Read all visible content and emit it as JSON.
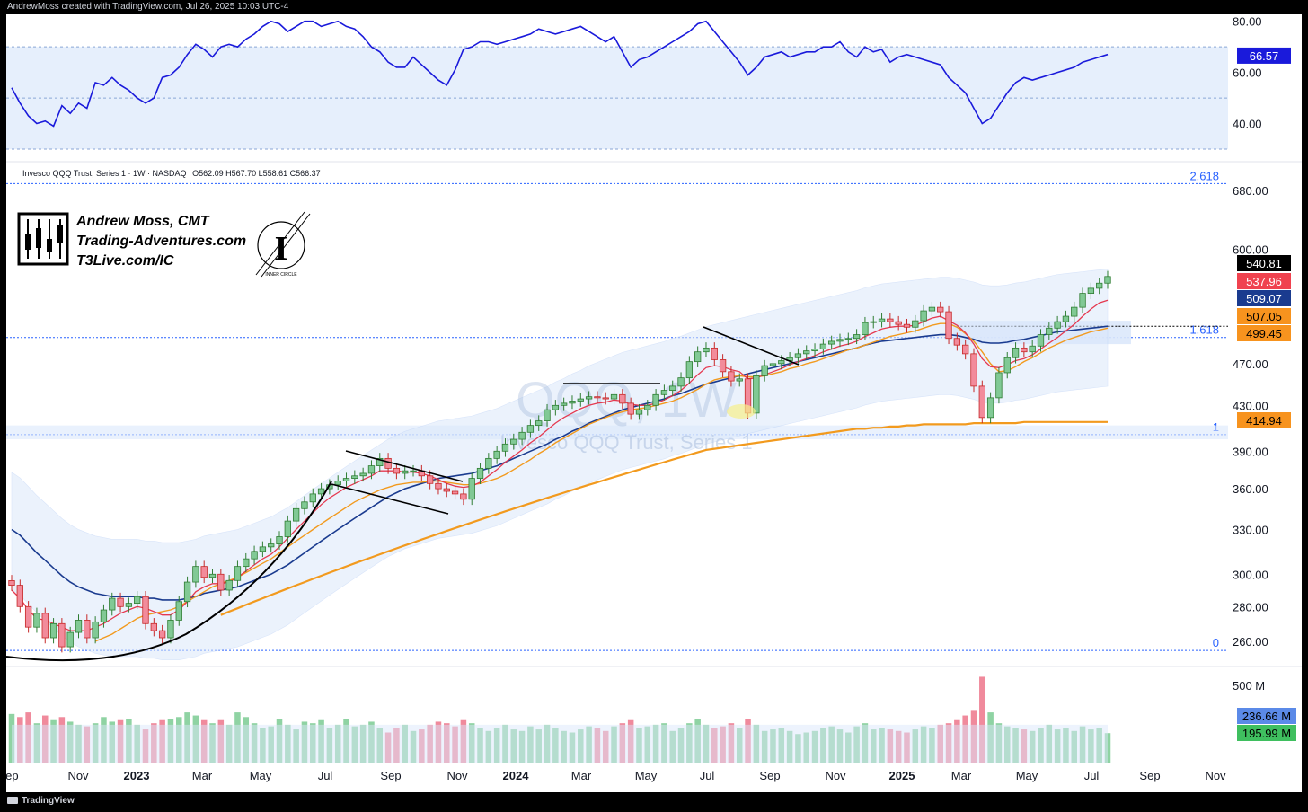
{
  "header": {
    "caption": "AndrewMoss created with TradingView.com, Jul 26, 2025 10:03 UTC-4"
  },
  "footer": {
    "brand": "TradingView"
  },
  "colors": {
    "up": "#81c995",
    "up_border": "#2e7d32",
    "down": "#f28b9b",
    "down_border": "#c62828",
    "rsi": "#1a1adb",
    "ema_red": "#e53950",
    "ma_blue": "#1a3b8f",
    "ma_orange": "#f29a1e",
    "fib": "#2962ff",
    "band_fill": "#dbe8fb"
  },
  "watermark": {
    "ticker": "QQQ, 1W",
    "name": "Invesco QQQ Trust, Series 1"
  },
  "logo": {
    "line1": "Andrew Moss, CMT",
    "line2": "Trading-Adventures.com",
    "line3": "T3Live.com/IC",
    "inner": "INNER CIRCLE"
  },
  "chart_data": {
    "type": "candlestick",
    "symbol": "Invesco QQQ Trust, Series 1 · 1W · NASDAQ",
    "ohlc_label": "O562.09 H567.70 L558.61 C566.37",
    "last_bar": {
      "open": 562.09,
      "high": 567.7,
      "low": 558.61,
      "close": 566.37
    },
    "price_scale": "log",
    "price_ticks": [
      "680.00",
      "600.00",
      "470.00",
      "430.00",
      "390.00",
      "360.00",
      "330.00",
      "300.00",
      "280.00",
      "260.00"
    ],
    "price_tick_values": [
      680,
      600,
      470,
      430,
      390,
      360,
      330,
      300,
      280,
      260
    ],
    "price_badges": [
      {
        "label": "540.81",
        "color": "#000000"
      },
      {
        "label": "537.96",
        "color": "#f0424f"
      },
      {
        "label": "509.07",
        "color": "#1a3b8f"
      },
      {
        "label": "507.05",
        "color": "#f7931e"
      },
      {
        "label": "499.45",
        "color": "#f7931e"
      },
      {
        "label": "414.94",
        "color": "#f7931e"
      }
    ],
    "fib_levels": [
      {
        "label": "2.618",
        "value": 690
      },
      {
        "label": "1.618",
        "value": 497
      },
      {
        "label": "1",
        "value": 404
      },
      {
        "label": "0",
        "value": 255
      }
    ],
    "x_labels": [
      {
        "label": "Sep",
        "bold": false
      },
      {
        "label": "Nov",
        "bold": false
      },
      {
        "label": "2023",
        "bold": true
      },
      {
        "label": "Mar",
        "bold": false
      },
      {
        "label": "May",
        "bold": false
      },
      {
        "label": "Jul",
        "bold": false
      },
      {
        "label": "Sep",
        "bold": false
      },
      {
        "label": "Nov",
        "bold": false
      },
      {
        "label": "2024",
        "bold": true
      },
      {
        "label": "Mar",
        "bold": false
      },
      {
        "label": "May",
        "bold": false
      },
      {
        "label": "Jul",
        "bold": false
      },
      {
        "label": "Sep",
        "bold": false
      },
      {
        "label": "Nov",
        "bold": false
      },
      {
        "label": "2025",
        "bold": true
      },
      {
        "label": "Mar",
        "bold": false
      },
      {
        "label": "May",
        "bold": false
      },
      {
        "label": "Jul",
        "bold": false
      },
      {
        "label": "Sep",
        "bold": false
      },
      {
        "label": "Nov",
        "bold": false
      }
    ],
    "closes": [
      293,
      280,
      268,
      276,
      262,
      270,
      257,
      265,
      272,
      262,
      271,
      278,
      285,
      280,
      282,
      286,
      270,
      266,
      262,
      272,
      283,
      295,
      305,
      298,
      300,
      290,
      296,
      305,
      310,
      315,
      318,
      320,
      325,
      336,
      345,
      350,
      356,
      360,
      363,
      366,
      368,
      370,
      372,
      378,
      384,
      376,
      372,
      374,
      374,
      370,
      364,
      360,
      358,
      356,
      352,
      368,
      376,
      384,
      390,
      396,
      400,
      406,
      412,
      416,
      426,
      430,
      432,
      434,
      436,
      438,
      437,
      436,
      440,
      432,
      422,
      426,
      430,
      440,
      444,
      448,
      456,
      472,
      482,
      486,
      474,
      462,
      453,
      455,
      423,
      458,
      468,
      470,
      473,
      476,
      480,
      483,
      485,
      490,
      493,
      495,
      496,
      500,
      513,
      514,
      517,
      514,
      511,
      508,
      515,
      526,
      530,
      525,
      496,
      489,
      480,
      448,
      419,
      437,
      461,
      476,
      486,
      482,
      488,
      500,
      507,
      514,
      520,
      530,
      546,
      552,
      558,
      566
    ],
    "ema_red": [
      290,
      285,
      278,
      273,
      272,
      270,
      268,
      266,
      266,
      266,
      268,
      270,
      273,
      276,
      278,
      280,
      279,
      277,
      275,
      275,
      278,
      283,
      289,
      292,
      294,
      294,
      295,
      298,
      302,
      306,
      310,
      313,
      318,
      324,
      330,
      336,
      342,
      348,
      353,
      357,
      361,
      364,
      367,
      370,
      374,
      374,
      374,
      373,
      373,
      372,
      370,
      367,
      364,
      362,
      361,
      362,
      365,
      370,
      375,
      381,
      386,
      391,
      397,
      402,
      408,
      414,
      419,
      423,
      427,
      430,
      432,
      433,
      435,
      434,
      431,
      430,
      430,
      432,
      435,
      439,
      444,
      451,
      459,
      466,
      468,
      467,
      464,
      462,
      455,
      456,
      459,
      462,
      465,
      469,
      472,
      475,
      478,
      482,
      485,
      488,
      490,
      493,
      498,
      502,
      506,
      508,
      509,
      509,
      510,
      514,
      518,
      520,
      515,
      510,
      502,
      490,
      475,
      467,
      466,
      469,
      473,
      475,
      479,
      485,
      491,
      497,
      504,
      511,
      520,
      528,
      535,
      538
    ],
    "ma_blue": [
      330,
      326,
      320,
      314,
      309,
      304,
      299,
      295,
      292,
      290,
      288,
      287,
      286,
      286,
      286,
      286,
      285,
      285,
      284,
      284,
      284,
      285,
      286,
      288,
      289,
      290,
      291,
      292,
      294,
      296,
      298,
      300,
      303,
      306,
      310,
      314,
      318,
      322,
      326,
      330,
      334,
      338,
      342,
      346,
      350,
      354,
      357,
      360,
      362,
      364,
      366,
      368,
      369,
      370,
      371,
      372,
      374,
      376,
      378,
      381,
      384,
      387,
      390,
      393,
      396,
      400,
      403,
      407,
      410,
      414,
      417,
      420,
      423,
      426,
      428,
      430,
      432,
      434,
      436,
      439,
      441,
      444,
      447,
      450,
      452,
      454,
      456,
      458,
      460,
      462,
      464,
      466,
      468,
      470,
      472,
      474,
      476,
      478,
      480,
      482,
      484,
      486,
      489,
      491,
      493,
      494,
      495,
      496,
      497,
      498,
      499,
      500,
      500,
      499,
      497,
      495,
      492,
      491,
      491,
      492,
      494,
      495,
      497,
      499,
      501,
      503,
      504,
      505,
      506,
      507,
      508,
      509
    ],
    "ma_orange_short": [
      null,
      null,
      null,
      null,
      null,
      null,
      null,
      null,
      null,
      null,
      260,
      262,
      264,
      267,
      270,
      273,
      275,
      276,
      277,
      278,
      280,
      283,
      286,
      289,
      292,
      294,
      296,
      298,
      301,
      304,
      307,
      310,
      314,
      318,
      322,
      326,
      330,
      334,
      338,
      342,
      346,
      350,
      353,
      356,
      359,
      361,
      363,
      364,
      365,
      365,
      366,
      366,
      365,
      364,
      363,
      363,
      364,
      366,
      368,
      371,
      375,
      379,
      383,
      388,
      392,
      397,
      401,
      405,
      409,
      413,
      416,
      419,
      422,
      424,
      426,
      427,
      428,
      430,
      432,
      434,
      437,
      441,
      445,
      450,
      454,
      456,
      457,
      458,
      457,
      457,
      458,
      460,
      462,
      465,
      467,
      470,
      472,
      475,
      478,
      481,
      484,
      486,
      489,
      492,
      495,
      498,
      500,
      502,
      504,
      507,
      510,
      512,
      512,
      508,
      501,
      493,
      482,
      470,
      462,
      463,
      467,
      472,
      476,
      481,
      486,
      490,
      494,
      497,
      500,
      503,
      505,
      507
    ],
    "ma_orange_long": [
      null,
      null,
      null,
      null,
      null,
      null,
      null,
      null,
      null,
      null,
      null,
      null,
      null,
      null,
      null,
      null,
      null,
      null,
      null,
      null,
      null,
      null,
      null,
      null,
      null,
      275,
      277,
      279,
      281,
      283,
      285,
      287,
      289,
      291,
      293,
      295,
      297,
      299,
      301,
      303,
      305,
      307,
      309,
      311,
      313,
      315,
      317,
      319,
      321,
      323,
      325,
      327,
      329,
      331,
      333,
      335,
      337,
      339,
      341,
      343,
      345,
      347,
      349,
      351,
      353,
      355,
      357,
      359,
      361,
      363,
      365,
      367,
      369,
      371,
      373,
      375,
      377,
      379,
      381,
      383,
      385,
      387,
      389,
      391,
      392,
      393,
      394,
      395,
      396,
      397,
      398,
      399,
      400,
      401,
      402,
      403,
      404,
      405,
      406,
      407,
      408,
      409,
      409,
      410,
      410,
      411,
      411,
      412,
      412,
      413,
      413,
      413,
      413,
      413,
      413,
      414,
      414,
      414,
      414,
      414,
      414,
      415,
      415,
      415,
      415,
      415,
      415,
      415,
      415,
      415,
      415,
      415
    ],
    "volume_scale_label": "500 M",
    "volume_badges": [
      {
        "label": "236.66 M",
        "color": "#5b8ae8"
      },
      {
        "label": "195.99 M",
        "color": "#3fbf5f"
      }
    ],
    "volume_millions": [
      320,
      300,
      330,
      260,
      310,
      280,
      300,
      270,
      250,
      240,
      260,
      300,
      270,
      280,
      290,
      250,
      220,
      260,
      280,
      290,
      300,
      330,
      310,
      280,
      260,
      280,
      250,
      330,
      300,
      260,
      230,
      240,
      290,
      250,
      220,
      270,
      260,
      280,
      230,
      250,
      290,
      240,
      250,
      270,
      230,
      200,
      230,
      250,
      210,
      220,
      250,
      270,
      260,
      240,
      280,
      260,
      230,
      210,
      230,
      250,
      220,
      210,
      240,
      220,
      250,
      230,
      210,
      200,
      220,
      240,
      230,
      210,
      240,
      260,
      280,
      230,
      240,
      250,
      260,
      210,
      230,
      260,
      290,
      250,
      230,
      240,
      260,
      230,
      290,
      250,
      210,
      220,
      230,
      210,
      190,
      200,
      210,
      230,
      240,
      220,
      200,
      240,
      260,
      220,
      230,
      220,
      210,
      200,
      220,
      240,
      230,
      250,
      260,
      280,
      310,
      340,
      560,
      330,
      260,
      240,
      230,
      220,
      210,
      230,
      250,
      220,
      230,
      210,
      240,
      220,
      230,
      196
    ],
    "rsi_ticks": [
      "80.00",
      "60.00",
      "40.00"
    ],
    "rsi_tick_values": [
      80,
      60,
      40
    ],
    "rsi_badge": "66.57",
    "rsi_values": [
      54,
      48,
      43,
      40,
      41,
      39,
      47,
      44,
      48,
      46,
      56,
      55,
      58,
      55,
      53,
      50,
      48,
      50,
      58,
      59,
      62,
      67,
      71,
      69,
      66,
      70,
      71,
      70,
      73,
      75,
      78,
      80,
      79,
      76,
      78,
      80,
      80,
      78,
      79,
      80,
      78,
      77,
      74,
      70,
      68,
      64,
      62,
      62,
      66,
      63,
      60,
      57,
      55,
      61,
      69,
      70,
      72,
      72,
      71,
      72,
      73,
      74,
      75,
      77,
      76,
      75,
      76,
      77,
      78,
      76,
      74,
      72,
      74,
      68,
      62,
      65,
      66,
      68,
      70,
      72,
      74,
      76,
      79,
      80,
      76,
      72,
      68,
      64,
      59,
      62,
      66,
      67,
      68,
      66,
      67,
      68,
      68,
      70,
      70,
      72,
      68,
      66,
      70,
      68,
      69,
      64,
      66,
      67,
      66,
      65,
      64,
      63,
      58,
      55,
      52,
      46,
      40,
      42,
      47,
      52,
      56,
      58,
      57,
      58,
      59,
      60,
      61,
      62,
      64,
      65,
      66,
      67
    ]
  }
}
